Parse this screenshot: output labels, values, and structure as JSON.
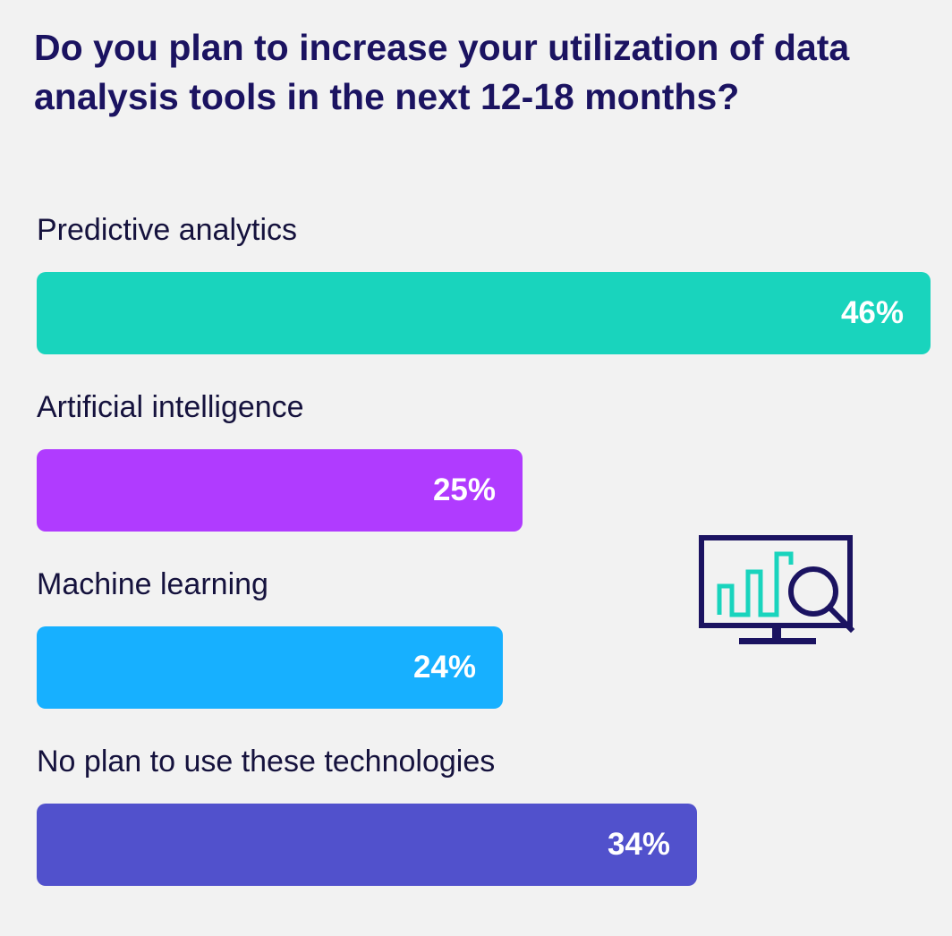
{
  "chart_data": {
    "type": "bar",
    "orientation": "horizontal",
    "title": "Do you plan to increase your utilization of data analysis tools in the next 12-18 months?",
    "categories": [
      "Predictive analytics",
      "Artificial intelligence",
      "Machine learning",
      "No plan to use these technologies"
    ],
    "values": [
      46,
      25,
      24,
      34
    ],
    "value_labels": [
      "46%",
      "25%",
      "24%",
      "34%"
    ],
    "unit": "%",
    "xlim": [
      0,
      46
    ],
    "colors": [
      "#19d4bd",
      "#b03bff",
      "#17b0ff",
      "#5151cc"
    ],
    "grid": false,
    "legend": "none"
  },
  "icons": {
    "decoration": "monitor-analytics-magnifier-icon",
    "colors": {
      "outline": "#1b1361",
      "bars": "#19d4bd"
    }
  }
}
